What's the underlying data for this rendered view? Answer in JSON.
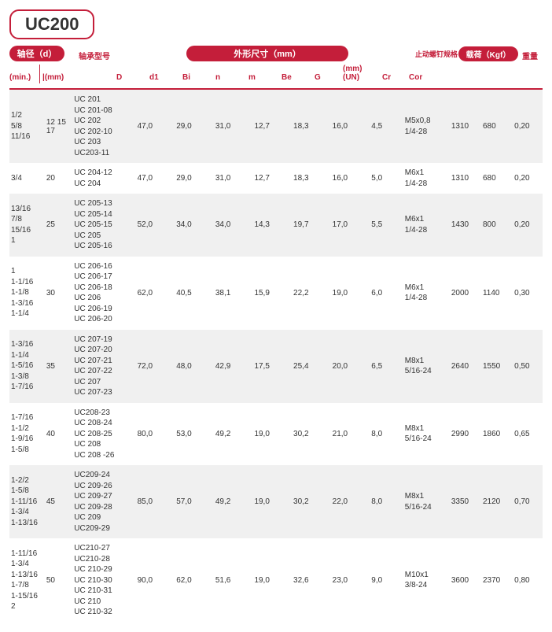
{
  "title": "UC200",
  "headers": {
    "shaft_d": "轴径（d）",
    "model": "轴承型号",
    "outer_dim": "外形尺寸（mm）",
    "screw": "止动螺钉规格",
    "load": "载荷（Kgf）",
    "weight": "重量",
    "min": "(min.)",
    "mm": "(mm)",
    "D": "D",
    "d1": "d1",
    "Bi": "Bi",
    "n": "n",
    "m": "m",
    "Be": "Be",
    "G": "G",
    "mmUN": "(mm)\n(UN)",
    "Cr": "Cr",
    "Cor": "Cor"
  },
  "rows": [
    {
      "alt": true,
      "min": "1/2\n5/8\n11/16",
      "mm": "12\n15\n17",
      "model": "UC 201\nUC 201-08\nUC 202\nUC 202-10\nUC 203\nUC203-11",
      "D": "47,0",
      "d1": "29,0",
      "Bi": "31,0",
      "n": "12,7",
      "m": "18,3",
      "Be": "16,0",
      "G": "4,5",
      "mmUN": "M5x0,8\n1/4-28",
      "Cr": "1310",
      "Cor": "680",
      "wt": "0,20"
    },
    {
      "alt": false,
      "min": "3/4",
      "mm": "20",
      "model": "UC 204-12\nUC 204",
      "D": "47,0",
      "d1": "29,0",
      "Bi": "31,0",
      "n": "12,7",
      "m": "18,3",
      "Be": "16,0",
      "G": "5,0",
      "mmUN": "M6x1\n1/4-28",
      "Cr": "1310",
      "Cor": "680",
      "wt": "0,20"
    },
    {
      "alt": true,
      "min": "13/16\n7/8\n15/16\n1",
      "mm": "25",
      "model": "UC 205-13\nUC 205-14\nUC 205-15\nUC 205\nUC 205-16",
      "D": "52,0",
      "d1": "34,0",
      "Bi": "34,0",
      "n": "14,3",
      "m": "19,7",
      "Be": "17,0",
      "G": "5,5",
      "mmUN": "M6x1\n1/4-28",
      "Cr": "1430",
      "Cor": "800",
      "wt": "0,20"
    },
    {
      "alt": false,
      "min": "1\n1-1/16\n1-1/8\n1-3/16\n1-1/4",
      "mm": "30",
      "model": "UC 206-16\nUC 206-17\nUC 206-18\nUC 206\nUC 206-19\nUC 206-20",
      "D": "62,0",
      "d1": "40,5",
      "Bi": "38,1",
      "n": "15,9",
      "m": "22,2",
      "Be": "19,0",
      "G": "6,0",
      "mmUN": "M6x1\n1/4-28",
      "Cr": "2000",
      "Cor": "1140",
      "wt": "0,30"
    },
    {
      "alt": true,
      "min": "1-3/16\n1-1/4\n1-5/16\n1-3/8\n1-7/16",
      "mm": "35",
      "model": "UC 207-19\nUC 207-20\nUC 207-21\nUC 207-22\nUC 207\nUC 207-23",
      "D": "72,0",
      "d1": "48,0",
      "Bi": "42,9",
      "n": "17,5",
      "m": "25,4",
      "Be": "20,0",
      "G": "6,5",
      "mmUN": "M8x1\n5/16-24",
      "Cr": "2640",
      "Cor": "1550",
      "wt": "0,50"
    },
    {
      "alt": false,
      "min": "1-7/16\n1-1/2\n1-9/16\n1-5/8",
      "mm": "40",
      "model": "UC208-23\nUC 208-24\nUC 208-25\nUC 208\nUC 208 -26",
      "D": "80,0",
      "d1": "53,0",
      "Bi": "49,2",
      "n": "19,0",
      "m": "30,2",
      "Be": "21,0",
      "G": "8,0",
      "mmUN": "M8x1\n5/16-24",
      "Cr": "2990",
      "Cor": "1860",
      "wt": "0,65"
    },
    {
      "alt": true,
      "min": "1-2/2\n1-5/8\n1-11/16\n1-3/4\n1-13/16",
      "mm": "45",
      "model": "UC209-24\nUC 209-26\nUC 209-27\nUC 209-28\nUC 209\nUC209-29",
      "D": "85,0",
      "d1": "57,0",
      "Bi": "49,2",
      "n": "19,0",
      "m": "30,2",
      "Be": "22,0",
      "G": "8,0",
      "mmUN": "M8x1\n5/16-24",
      "Cr": "3350",
      "Cor": "2120",
      "wt": "0,70"
    },
    {
      "alt": false,
      "min": "1-11/16\n1-3/4\n1-13/16\n1-7/8\n1-15/16\n2",
      "mm": "50",
      "model": "UC210-27\nUC210-28\nUC 210-29\nUC 210-30\nUC 210-31\nUC 210\nUC 210-32",
      "D": "90,0",
      "d1": "62,0",
      "Bi": "51,6",
      "n": "19,0",
      "m": "32,6",
      "Be": "23,0",
      "G": "9,0",
      "mmUN": "M10x1\n3/8-24",
      "Cr": "3600",
      "Cor": "2370",
      "wt": "0,80"
    }
  ]
}
